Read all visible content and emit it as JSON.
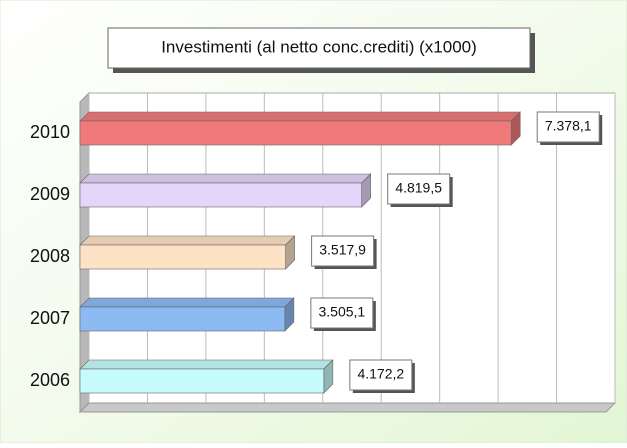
{
  "chart_data": {
    "type": "hbar3d",
    "title": "Investimenti (al netto conc.crediti) (x1000)",
    "categories": [
      "2010",
      "2009",
      "2008",
      "2007",
      "2006"
    ],
    "values": [
      7378.1,
      4819.5,
      3517.9,
      3505.1,
      4172.2
    ],
    "value_labels": [
      "7.378,1",
      "4.819,5",
      "3.517,9",
      "3.505,1",
      "4.172,2"
    ],
    "colors": [
      "#f07a7a",
      "#e4d6fa",
      "#fde2c6",
      "#8cbaf2",
      "#c6fbfb"
    ],
    "xlim": [
      0,
      9000
    ],
    "xticks": [
      0,
      1000,
      2000,
      3000,
      4000,
      5000,
      6000,
      7000,
      8000,
      9000
    ],
    "grid": true
  }
}
